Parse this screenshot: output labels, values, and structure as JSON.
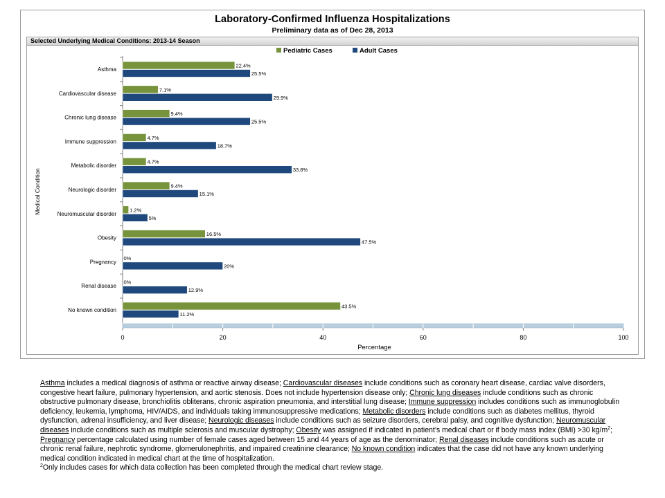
{
  "title": "Laboratory-Confirmed Influenza Hospitalizations",
  "subtitle": "Preliminary data as of Dec 28, 2013",
  "panel_header": "Selected Underlying Medical Conditions: 2013-14 Season",
  "colors": {
    "pediatric": "#77933c",
    "adult": "#1f497d",
    "band": "#b9cfe0"
  },
  "chart_data": {
    "type": "bar",
    "orientation": "horizontal",
    "categories": [
      "Asthma",
      "Cardiovascular disease",
      "Chronic lung disease",
      "Immune suppression",
      "Metabolic disorder",
      "Neurologic disorder",
      "Neuromuscular disorder",
      "Obesity",
      "Pregnancy",
      "Renal disease",
      "No known condition"
    ],
    "series": [
      {
        "name": "Pediatric Cases",
        "values": [
          22.4,
          7.1,
          9.4,
          4.7,
          4.7,
          9.4,
          1.2,
          16.5,
          0,
          0,
          43.5
        ],
        "labels": [
          "22.4%",
          "7.1%",
          "9.4%",
          "4.7%",
          "4.7%",
          "9.4%",
          "1.2%",
          "16.5%",
          "0%",
          "0%",
          "43.5%"
        ]
      },
      {
        "name": "Adult Cases",
        "values": [
          25.5,
          29.9,
          25.5,
          18.7,
          33.8,
          15.1,
          5,
          47.5,
          20,
          12.9,
          11.2
        ],
        "labels": [
          "25.5%",
          "29.9%",
          "25.5%",
          "18.7%",
          "33.8%",
          "15.1%",
          "5%",
          "47.5%",
          "20%",
          "12.9%",
          "11.2%"
        ]
      }
    ],
    "xlabel": "Percentage",
    "ylabel": "Medical Condition",
    "xlim": [
      0,
      100
    ],
    "xticks": [
      "0",
      "20",
      "40",
      "60",
      "80",
      "100"
    ],
    "legend_position": "top",
    "grid": false
  },
  "footnote": {
    "p1_asthma_term": "Asthma",
    "p1_asthma_text": " includes a medical diagnosis of asthma or reactive airway disease; ",
    "p1_cardio_term": "Cardiovascular diseases",
    "p1_cardio_text": " include conditions such as coronary heart disease, cardiac valve disorders, congestive heart failure, pulmonary hypertension, and aortic stenosis.  Does not include hypertension disease only; ",
    "p1_lung_term": "Chronic lung diseases",
    "p1_lung_text": " include conditions such as chronic obstructive pulmonary disease, bronchiolitis obliterans, chronic aspiration pneumonia, and interstitial lung disease;  ",
    "p1_immune_term": "Immune suppression",
    "p1_immune_text": " includes conditions such as immunoglobulin deficiency, leukemia, lymphoma, HIV/AIDS, and individuals taking immunosuppressive medications; ",
    "p1_metabolic_term": "Metabolic disorders",
    "p1_metabolic_text": " include conditions such as diabetes mellitus, thyroid dysfunction, adrenal insufficiency, and liver disease;  ",
    "p1_neuro_term": "Neurologic diseases",
    "p1_neuro_text": " include conditions such as seizure disorders, cerebral palsy, and cognitive dysfunction;  ",
    "p1_neuromuscular_term": "Neuromuscular diseases",
    "p1_neuromuscular_text": " include conditions such as multiple sclerosis and muscular dystrophy;  ",
    "p1_obesity_term": "Obesity",
    "p1_obesity_text": " was assigned if indicated in patient’s medical chart or if body mass index (BMI) >30 kg/m",
    "p1_obesity_sup": "2",
    "p1_obesity_after": ";  ",
    "p1_pregnancy_term": "Pregnancy",
    "p1_pregnancy_text": " percentage calculated using number of female cases aged between 15 and 44 years of age as the denominator;  ",
    "p1_renal_term": "Renal diseases",
    "p1_renal_text": " include conditions such as acute or chronic renal failure, nephrotic syndrome, glomerulonephritis, and impaired creatinine clearance;  ",
    "p1_noknown_term": "No known condition",
    "p1_noknown_text": " indicates that the case did not have any known underlying medical condition indicated in medical chart at the time of hospitalization.",
    "p2_sup": "2",
    "p2_text": "Only includes cases for which data collection has been completed through the medical chart review stage."
  }
}
